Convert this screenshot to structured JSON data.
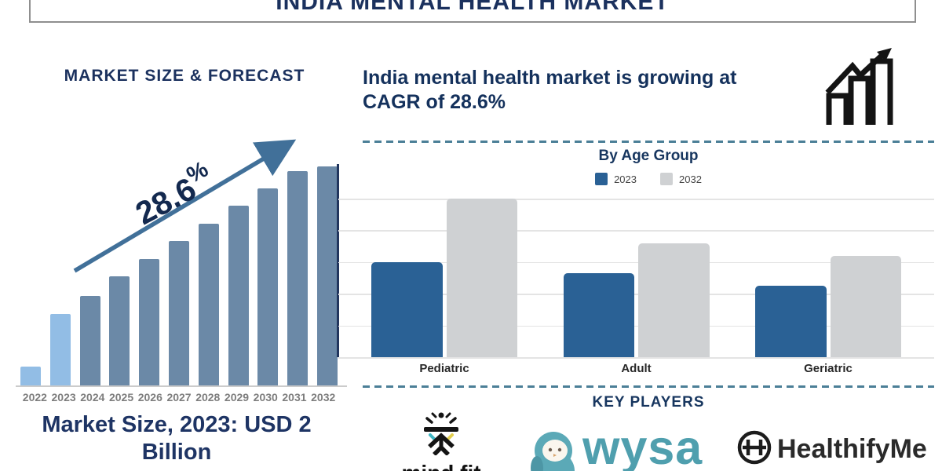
{
  "header": {
    "title": "INDIA MENTAL HEALTH MARKET"
  },
  "right_panel": {
    "headline_line1": "India mental health market is growing at",
    "headline_line2": "CAGR of 28.6%",
    "key_players": {
      "title": "KEY PLAYERS",
      "players": [
        {
          "name": "mind fit"
        },
        {
          "name": "wysa"
        },
        {
          "name": "HealthifyMe"
        }
      ]
    }
  },
  "chart_data": [
    {
      "id": "market-size-forecast",
      "type": "bar",
      "title": "MARKET SIZE & FORECAST",
      "categories": [
        "2022",
        "2023",
        "2024",
        "2025",
        "2026",
        "2027",
        "2028",
        "2029",
        "2030",
        "2031",
        "2032"
      ],
      "values": [
        9,
        33,
        41,
        50,
        58,
        66,
        74,
        82,
        90,
        98,
        100
      ],
      "units": "relative bar height, % of 2032 bar (no value axis shown)",
      "highlight_years": [
        "2022",
        "2023"
      ],
      "annotation": {
        "label": "28.6%",
        "note": "CAGR trend arrow rising over bars"
      },
      "caption": "Market Size, 2023: USD 2 Billion",
      "xlabel": "",
      "ylabel": "",
      "grid": false,
      "legend_position": "none"
    },
    {
      "id": "by-age-group",
      "type": "bar",
      "title": "By Age Group",
      "categories": [
        "Pediatric",
        "Adult",
        "Geriatric"
      ],
      "series": [
        {
          "name": "2023",
          "color": "#2a6195",
          "values": [
            60,
            53,
            45
          ]
        },
        {
          "name": "2032",
          "color": "#cfd1d3",
          "values": [
            100,
            72,
            64
          ]
        }
      ],
      "units": "relative bar height, % of tallest bar (no value axis shown)",
      "grid": true,
      "legend_position": "top"
    }
  ],
  "icons": {
    "growth_chart_icon": "three rising outlined bars with zigzag up-right arrow",
    "mindfit_icon": "abstract figure with raised-arm chevrons under a bar with sun dot and rays",
    "wysa_icon": "teal penguin mascot",
    "healthifyme_icon": "circled letter H"
  },
  "colors": {
    "navy_text": "#1b315e",
    "forecast_bar_dark": "#6b89a7",
    "forecast_bar_light": "#92bde5",
    "trend_arrow": "#417099",
    "age_bar_2023": "#2a6195",
    "age_bar_2032": "#cfd1d3",
    "dashed_separator": "#4b7f97",
    "gridline": "#e4e4e4",
    "year_label": "#7d7d7d",
    "wysa_teal": "#4f9fae",
    "title_border": "#8f8f8f"
  }
}
